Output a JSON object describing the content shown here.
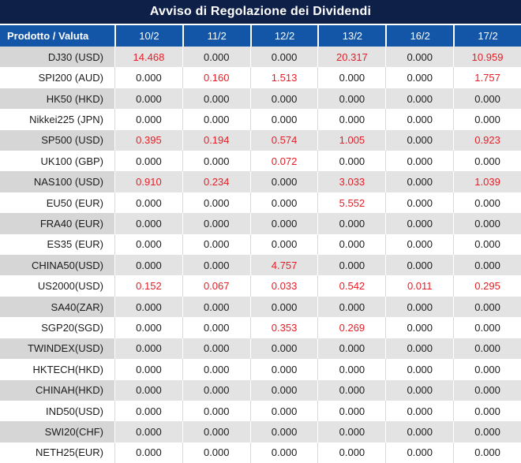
{
  "title": "Avviso di Regolazione dei Dividendi",
  "colors": {
    "title_bg": "#0e2048",
    "header_bg": "#1356a8",
    "row_gray": "#e3e3e3",
    "product_gray": "#d6d6d6",
    "red": "#e41e26",
    "text": "#1c1c1c"
  },
  "columns": {
    "product_header": "Prodotto / Valuta",
    "dates": [
      "10/2",
      "11/2",
      "12/2",
      "13/2",
      "16/2",
      "17/2"
    ]
  },
  "rows": [
    {
      "product": "DJ30 (USD)",
      "values": [
        "14.468",
        "0.000",
        "0.000",
        "20.317",
        "0.000",
        "10.959"
      ],
      "red": [
        1,
        0,
        0,
        1,
        0,
        1
      ]
    },
    {
      "product": "SPI200 (AUD)",
      "values": [
        "0.000",
        "0.160",
        "1.513",
        "0.000",
        "0.000",
        "1.757"
      ],
      "red": [
        0,
        1,
        1,
        0,
        0,
        1
      ]
    },
    {
      "product": "HK50 (HKD)",
      "values": [
        "0.000",
        "0.000",
        "0.000",
        "0.000",
        "0.000",
        "0.000"
      ],
      "red": [
        0,
        0,
        0,
        0,
        0,
        0
      ]
    },
    {
      "product": "Nikkei225 (JPN)",
      "values": [
        "0.000",
        "0.000",
        "0.000",
        "0.000",
        "0.000",
        "0.000"
      ],
      "red": [
        0,
        0,
        0,
        0,
        0,
        0
      ]
    },
    {
      "product": "SP500 (USD)",
      "values": [
        "0.395",
        "0.194",
        "0.574",
        "1.005",
        "0.000",
        "0.923"
      ],
      "red": [
        1,
        1,
        1,
        1,
        0,
        1
      ]
    },
    {
      "product": "UK100 (GBP)",
      "values": [
        "0.000",
        "0.000",
        "0.072",
        "0.000",
        "0.000",
        "0.000"
      ],
      "red": [
        0,
        0,
        1,
        0,
        0,
        0
      ]
    },
    {
      "product": "NAS100 (USD)",
      "values": [
        "0.910",
        "0.234",
        "0.000",
        "3.033",
        "0.000",
        "1.039"
      ],
      "red": [
        1,
        1,
        0,
        1,
        0,
        1
      ]
    },
    {
      "product": "EU50 (EUR)",
      "values": [
        "0.000",
        "0.000",
        "0.000",
        "5.552",
        "0.000",
        "0.000"
      ],
      "red": [
        0,
        0,
        0,
        1,
        0,
        0
      ]
    },
    {
      "product": "FRA40 (EUR)",
      "values": [
        "0.000",
        "0.000",
        "0.000",
        "0.000",
        "0.000",
        "0.000"
      ],
      "red": [
        0,
        0,
        0,
        0,
        0,
        0
      ]
    },
    {
      "product": "ES35 (EUR)",
      "values": [
        "0.000",
        "0.000",
        "0.000",
        "0.000",
        "0.000",
        "0.000"
      ],
      "red": [
        0,
        0,
        0,
        0,
        0,
        0
      ]
    },
    {
      "product": "CHINA50(USD)",
      "values": [
        "0.000",
        "0.000",
        "4.757",
        "0.000",
        "0.000",
        "0.000"
      ],
      "red": [
        0,
        0,
        1,
        0,
        0,
        0
      ]
    },
    {
      "product": "US2000(USD)",
      "values": [
        "0.152",
        "0.067",
        "0.033",
        "0.542",
        "0.011",
        "0.295"
      ],
      "red": [
        1,
        1,
        1,
        1,
        1,
        1
      ]
    },
    {
      "product": "SA40(ZAR)",
      "values": [
        "0.000",
        "0.000",
        "0.000",
        "0.000",
        "0.000",
        "0.000"
      ],
      "red": [
        0,
        0,
        0,
        0,
        0,
        0
      ]
    },
    {
      "product": "SGP20(SGD)",
      "values": [
        "0.000",
        "0.000",
        "0.353",
        "0.269",
        "0.000",
        "0.000"
      ],
      "red": [
        0,
        0,
        1,
        1,
        0,
        0
      ]
    },
    {
      "product": "TWINDEX(USD)",
      "values": [
        "0.000",
        "0.000",
        "0.000",
        "0.000",
        "0.000",
        "0.000"
      ],
      "red": [
        0,
        0,
        0,
        0,
        0,
        0
      ]
    },
    {
      "product": "HKTECH(HKD)",
      "values": [
        "0.000",
        "0.000",
        "0.000",
        "0.000",
        "0.000",
        "0.000"
      ],
      "red": [
        0,
        0,
        0,
        0,
        0,
        0
      ]
    },
    {
      "product": "CHINAH(HKD)",
      "values": [
        "0.000",
        "0.000",
        "0.000",
        "0.000",
        "0.000",
        "0.000"
      ],
      "red": [
        0,
        0,
        0,
        0,
        0,
        0
      ]
    },
    {
      "product": "IND50(USD)",
      "values": [
        "0.000",
        "0.000",
        "0.000",
        "0.000",
        "0.000",
        "0.000"
      ],
      "red": [
        0,
        0,
        0,
        0,
        0,
        0
      ]
    },
    {
      "product": "SWI20(CHF)",
      "values": [
        "0.000",
        "0.000",
        "0.000",
        "0.000",
        "0.000",
        "0.000"
      ],
      "red": [
        0,
        0,
        0,
        0,
        0,
        0
      ]
    },
    {
      "product": "NETH25(EUR)",
      "values": [
        "0.000",
        "0.000",
        "0.000",
        "0.000",
        "0.000",
        "0.000"
      ],
      "red": [
        0,
        0,
        0,
        0,
        0,
        0
      ]
    }
  ]
}
